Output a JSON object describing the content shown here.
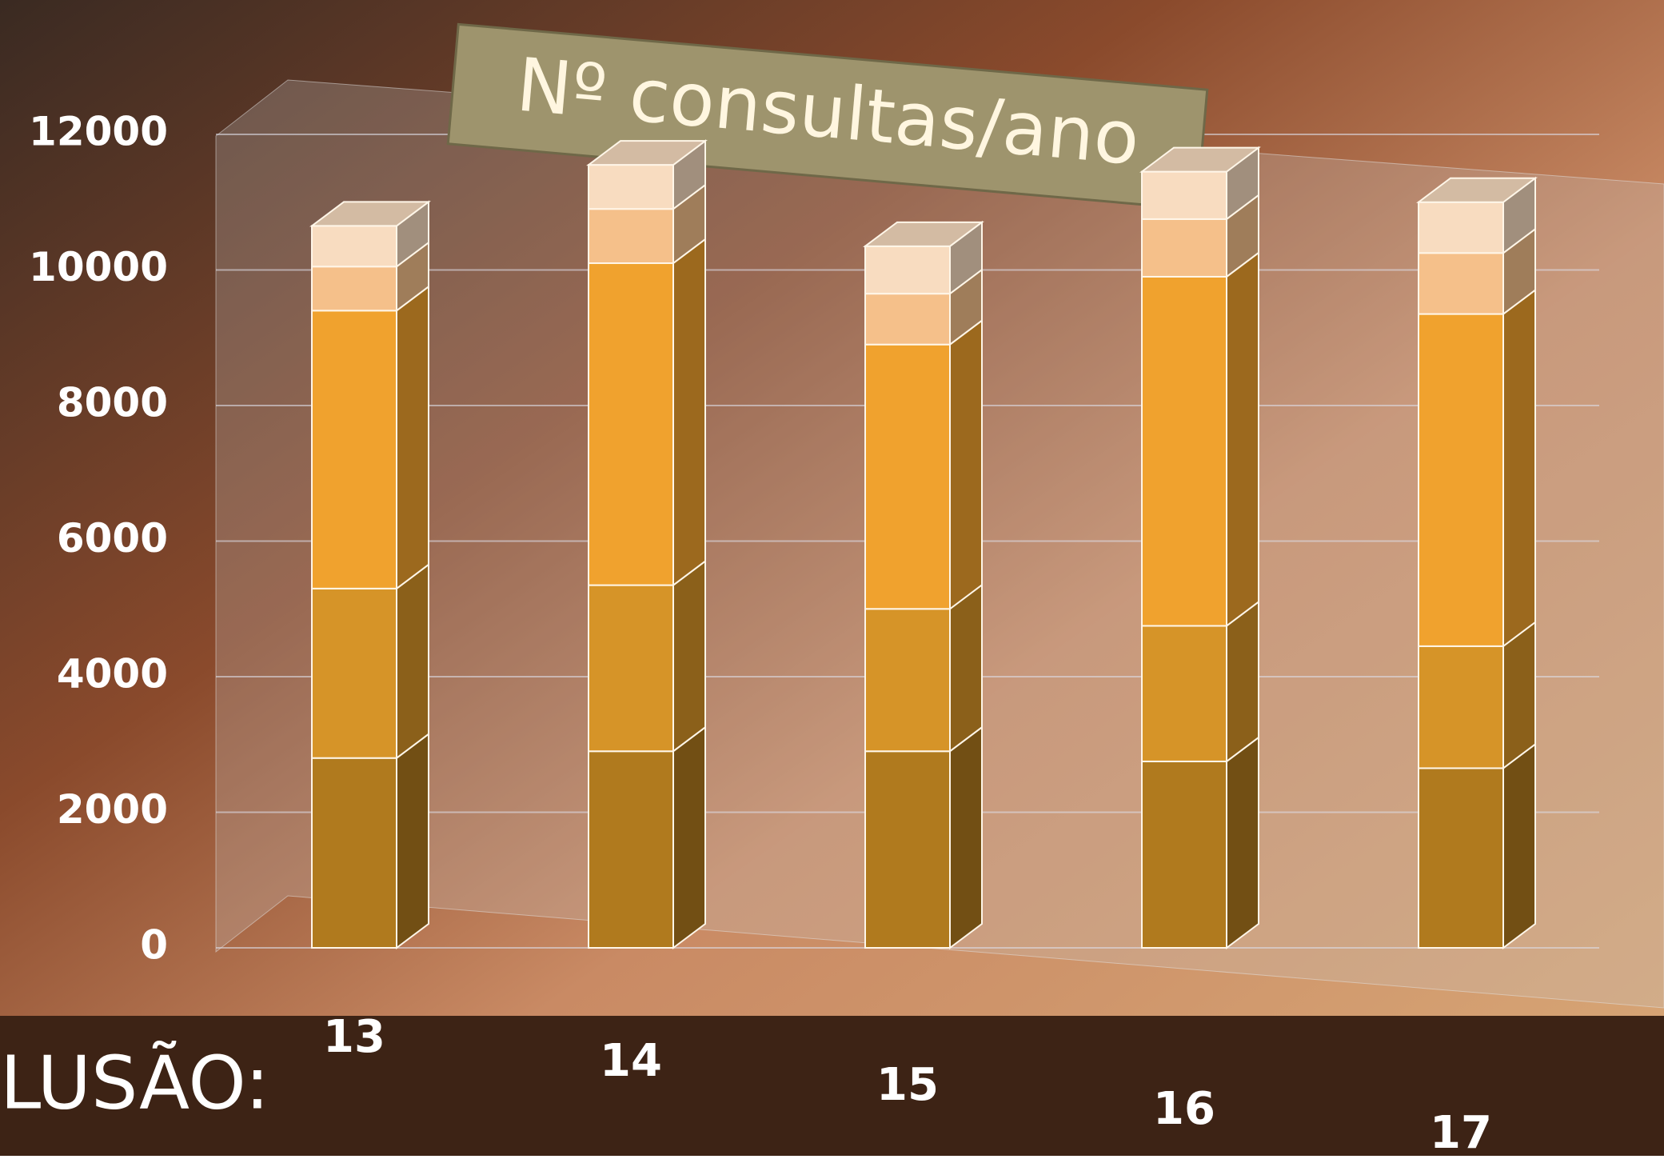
{
  "chart_data": {
    "type": "bar3d-stacked",
    "title": "Nº consultas/ano",
    "categories": [
      "13",
      "14",
      "15",
      "16",
      "17"
    ],
    "series": [
      {
        "color": "#b07a1e",
        "values": [
          2800,
          2900,
          2900,
          2750,
          2650
        ]
      },
      {
        "color": "#d69428",
        "values": [
          2500,
          2450,
          2100,
          2000,
          1800
        ]
      },
      {
        "color": "#f0a22e",
        "values": [
          4100,
          4750,
          3900,
          5150,
          4900
        ]
      },
      {
        "color": "#f5c08a",
        "values": [
          650,
          800,
          750,
          850,
          900
        ]
      },
      {
        "color": "#f8dcc0",
        "values": [
          600,
          650,
          700,
          700,
          750
        ]
      }
    ],
    "ylim": [
      0,
      12000
    ],
    "yticks": [
      0,
      2000,
      4000,
      6000,
      8000,
      10000,
      12000
    ],
    "grid": true,
    "caption": "LUSÃO:"
  }
}
